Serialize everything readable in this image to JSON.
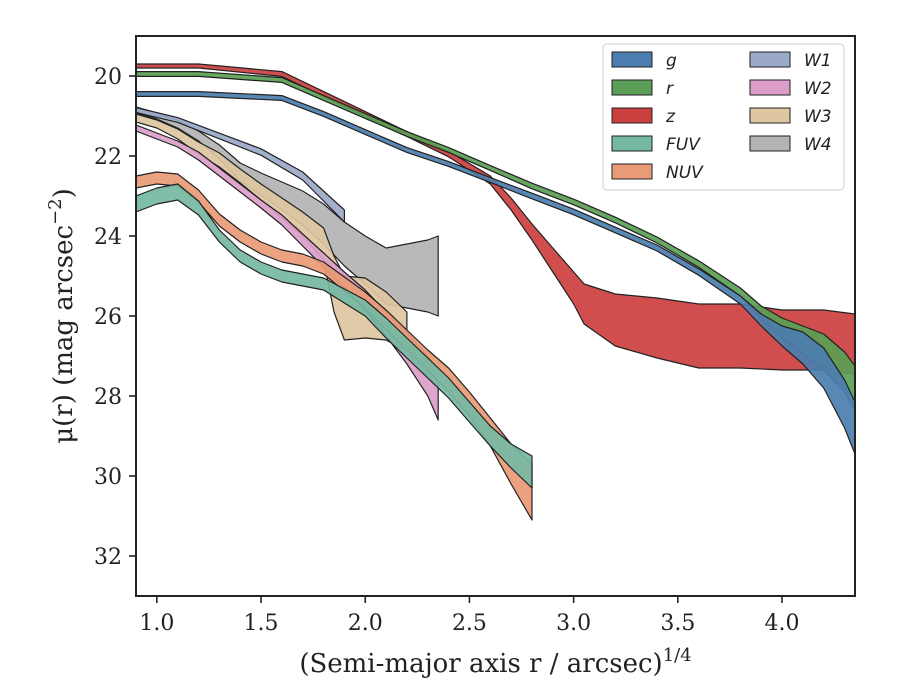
{
  "chart_data": {
    "type": "area",
    "xlabel": "(Semi-major axis r / arcsec)",
    "xlabel_exponent": "1/4",
    "ylabel": "μ(r) (mag arcsec",
    "ylabel_exponent": "−2",
    "ylabel_close": ")",
    "xlim": [
      0.9,
      4.35
    ],
    "ylim": [
      33.0,
      19.0
    ],
    "y_inverted": true,
    "x_ticks": [
      1.0,
      1.5,
      2.0,
      2.5,
      3.0,
      3.5,
      4.0
    ],
    "x_tick_labels": [
      "1.0",
      "1.5",
      "2.0",
      "2.5",
      "3.0",
      "3.5",
      "4.0"
    ],
    "y_ticks": [
      20,
      22,
      24,
      26,
      28,
      30,
      32
    ],
    "y_tick_labels": [
      "20",
      "22",
      "24",
      "26",
      "28",
      "30",
      "32"
    ],
    "grid": false,
    "legend_position": "top-right",
    "legend_columns": 2,
    "series": [
      {
        "name": "g",
        "color": "#4c7eaf",
        "x": [
          0.9,
          1.2,
          1.6,
          1.8,
          2.0,
          2.2,
          2.4,
          2.6,
          2.8,
          3.0,
          3.2,
          3.4,
          3.6,
          3.8,
          3.9,
          4.0,
          4.1,
          4.2,
          4.3,
          4.35
        ],
        "y": [
          20.45,
          20.45,
          20.55,
          20.95,
          21.4,
          21.85,
          22.2,
          22.6,
          23.0,
          23.4,
          23.85,
          24.3,
          24.9,
          25.6,
          26.1,
          26.5,
          26.8,
          27.3,
          28.2,
          28.8
        ],
        "width": [
          0.12,
          0.12,
          0.12,
          0.12,
          0.12,
          0.12,
          0.12,
          0.12,
          0.14,
          0.14,
          0.14,
          0.15,
          0.16,
          0.2,
          0.3,
          0.5,
          0.8,
          1.0,
          1.2,
          1.3
        ]
      },
      {
        "name": "r",
        "color": "#5a9f55",
        "x": [
          0.9,
          1.2,
          1.6,
          1.8,
          2.0,
          2.2,
          2.4,
          2.6,
          2.8,
          3.0,
          3.2,
          3.4,
          3.6,
          3.8,
          3.9,
          4.0,
          4.1,
          4.2,
          4.3,
          4.35
        ],
        "y": [
          19.95,
          19.95,
          20.1,
          20.55,
          21.0,
          21.45,
          21.85,
          22.3,
          22.75,
          23.15,
          23.6,
          24.1,
          24.7,
          25.4,
          25.9,
          26.3,
          26.6,
          26.9,
          27.4,
          27.8
        ],
        "width": [
          0.12,
          0.12,
          0.12,
          0.12,
          0.12,
          0.12,
          0.12,
          0.12,
          0.14,
          0.14,
          0.14,
          0.15,
          0.16,
          0.2,
          0.3,
          0.5,
          0.7,
          0.9,
          1.0,
          1.1
        ]
      },
      {
        "name": "z",
        "color": "#cc3f3f",
        "x": [
          0.9,
          1.2,
          1.6,
          1.8,
          2.0,
          2.2,
          2.4,
          2.6,
          2.7,
          2.8,
          2.9,
          3.0,
          3.05,
          3.2,
          3.4,
          3.6,
          3.8,
          4.0,
          4.2,
          4.35
        ],
        "y": [
          19.75,
          19.75,
          19.95,
          20.45,
          20.95,
          21.45,
          21.95,
          22.6,
          23.2,
          23.9,
          24.6,
          25.3,
          25.7,
          26.1,
          26.3,
          26.5,
          26.5,
          26.6,
          26.6,
          26.7
        ],
        "width": [
          0.1,
          0.1,
          0.12,
          0.12,
          0.12,
          0.12,
          0.14,
          0.2,
          0.3,
          0.4,
          0.6,
          0.8,
          1.0,
          1.3,
          1.5,
          1.6,
          1.6,
          1.5,
          1.5,
          1.5
        ]
      },
      {
        "name": "FUV",
        "color": "#75b9a3",
        "x": [
          0.9,
          1.0,
          1.1,
          1.2,
          1.3,
          1.4,
          1.5,
          1.6,
          1.7,
          1.8,
          1.9,
          2.0,
          2.1,
          2.2,
          2.3,
          2.4,
          2.5,
          2.6,
          2.7,
          2.8
        ],
        "y": [
          23.2,
          23.0,
          22.9,
          23.3,
          24.0,
          24.5,
          24.8,
          25.0,
          25.1,
          25.2,
          25.5,
          25.8,
          26.3,
          26.8,
          27.3,
          27.8,
          28.4,
          29.0,
          29.5,
          29.9
        ],
        "width": [
          0.4,
          0.4,
          0.4,
          0.35,
          0.3,
          0.3,
          0.3,
          0.3,
          0.3,
          0.3,
          0.35,
          0.4,
          0.5,
          0.5,
          0.5,
          0.5,
          0.5,
          0.5,
          0.6,
          0.8
        ]
      },
      {
        "name": "NUV",
        "color": "#e99a76",
        "x": [
          0.9,
          1.0,
          1.1,
          1.2,
          1.3,
          1.4,
          1.5,
          1.6,
          1.7,
          1.8,
          1.9,
          2.0,
          2.1,
          2.2,
          2.3,
          2.4,
          2.5,
          2.6,
          2.7,
          2.8
        ],
        "y": [
          22.65,
          22.55,
          22.6,
          23.0,
          23.6,
          24.0,
          24.3,
          24.5,
          24.6,
          24.8,
          25.2,
          25.6,
          26.1,
          26.6,
          27.1,
          27.6,
          28.2,
          28.9,
          29.7,
          30.4
        ],
        "width": [
          0.3,
          0.3,
          0.3,
          0.3,
          0.3,
          0.3,
          0.3,
          0.3,
          0.3,
          0.3,
          0.35,
          0.4,
          0.5,
          0.5,
          0.5,
          0.6,
          0.6,
          0.7,
          1.0,
          1.4
        ]
      },
      {
        "name": "W1",
        "color": "#9ba9c9",
        "x": [
          0.9,
          1.1,
          1.3,
          1.5,
          1.7,
          1.9
        ],
        "y": [
          20.85,
          21.1,
          21.5,
          21.9,
          22.5,
          23.5
        ],
        "width": [
          0.12,
          0.12,
          0.14,
          0.16,
          0.2,
          0.3
        ]
      },
      {
        "name": "W2",
        "color": "#dc9ec9",
        "x": [
          0.9,
          1.0,
          1.1,
          1.2,
          1.3,
          1.4,
          1.5,
          1.6,
          1.7,
          1.8,
          1.9,
          2.0,
          2.1,
          2.2,
          2.3,
          2.35
        ],
        "y": [
          21.3,
          21.5,
          21.7,
          22.0,
          22.4,
          22.8,
          23.2,
          23.6,
          24.1,
          24.6,
          25.1,
          25.6,
          26.2,
          26.8,
          27.5,
          28.0
        ],
        "width": [
          0.15,
          0.15,
          0.15,
          0.2,
          0.2,
          0.2,
          0.2,
          0.25,
          0.3,
          0.35,
          0.4,
          0.5,
          0.6,
          0.8,
          1.0,
          1.2
        ]
      },
      {
        "name": "W3",
        "color": "#dec6a0",
        "x": [
          0.9,
          1.0,
          1.1,
          1.2,
          1.3,
          1.4,
          1.5,
          1.6,
          1.7,
          1.8,
          1.85,
          1.9,
          2.0,
          2.1,
          2.2
        ],
        "y": [
          21.05,
          21.2,
          21.45,
          21.8,
          22.1,
          22.5,
          22.9,
          23.3,
          23.7,
          24.2,
          25.2,
          25.8,
          25.8,
          26.0,
          26.4
        ],
        "width": [
          0.2,
          0.2,
          0.25,
          0.3,
          0.35,
          0.35,
          0.4,
          0.5,
          0.6,
          0.8,
          1.4,
          1.6,
          1.5,
          1.2,
          1.0
        ]
      },
      {
        "name": "W4",
        "color": "#b3b3b3",
        "x": [
          0.9,
          1.0,
          1.1,
          1.2,
          1.3,
          1.4,
          1.5,
          1.6,
          1.7,
          1.8,
          1.9,
          2.0,
          2.1,
          2.2,
          2.3,
          2.35
        ],
        "y": [
          20.85,
          21.0,
          21.2,
          21.5,
          21.9,
          22.4,
          22.7,
          23.0,
          23.3,
          23.7,
          24.2,
          24.6,
          25.0,
          25.0,
          25.0,
          25.0
        ],
        "width": [
          0.15,
          0.15,
          0.2,
          0.25,
          0.35,
          0.45,
          0.55,
          0.7,
          0.85,
          1.0,
          1.1,
          1.2,
          1.4,
          1.6,
          1.8,
          2.0
        ]
      }
    ]
  }
}
